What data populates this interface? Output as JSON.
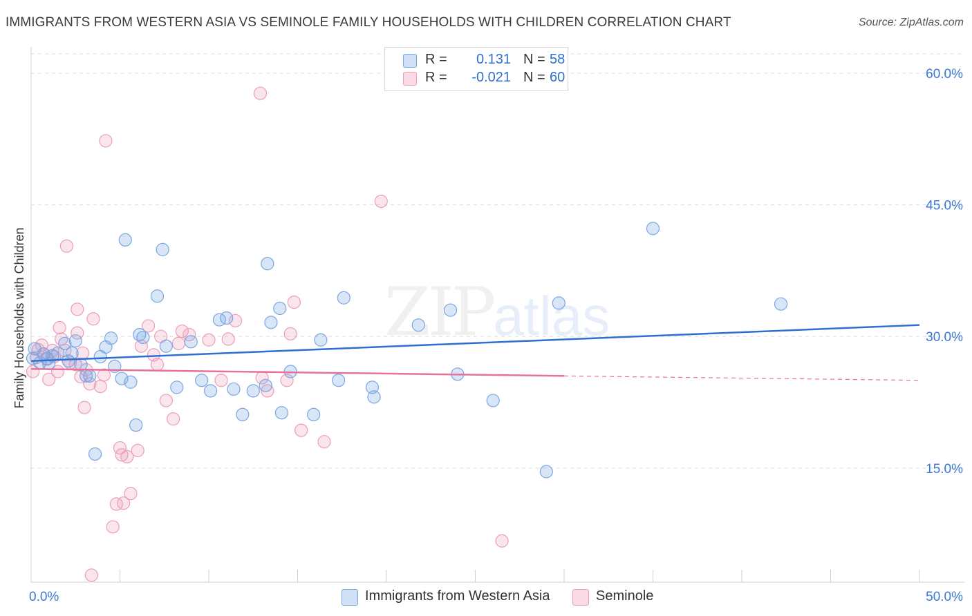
{
  "header": {
    "title": "IMMIGRANTS FROM WESTERN ASIA VS SEMINOLE FAMILY HOUSEHOLDS WITH CHILDREN CORRELATION CHART",
    "source": "Source: ZipAtlas.com"
  },
  "watermark": {
    "zip": "ZIP",
    "atlas": "atlas"
  },
  "legend": {
    "rows": [
      {
        "r_label": "R =",
        "r_value": "0.131",
        "n_label": "N =",
        "n_value": "58"
      },
      {
        "r_label": "R =",
        "r_value": "-0.021",
        "n_label": "N =",
        "n_value": "60"
      }
    ]
  },
  "bottom_legend": {
    "series1": "Immigrants from Western Asia",
    "series2": "Seminole"
  },
  "colors": {
    "series1_fill": "rgba(120,165,230,0.28)",
    "series1_stroke": "#7aa6e0",
    "series1_line": "#2f6fcf",
    "series2_fill": "rgba(240,150,180,0.25)",
    "series2_stroke": "#eb9db8",
    "series2_line": "#e8719a",
    "axis_text": "#3a78d4",
    "grid": "#dcdcdc"
  },
  "chart_data": {
    "type": "scatter",
    "title": "IMMIGRANTS FROM WESTERN ASIA VS SEMINOLE FAMILY HOUSEHOLDS WITH CHILDREN CORRELATION CHART",
    "xlabel": "",
    "ylabel": "Family Households with Children",
    "xlim": [
      0,
      50
    ],
    "ylim": [
      0,
      60
    ],
    "x_tick_labels": [
      "0.0%",
      "50.0%"
    ],
    "y_ticks": [
      15,
      30,
      45,
      60
    ],
    "y_tick_labels": [
      "15.0%",
      "30.0%",
      "45.0%",
      "60.0%"
    ],
    "grid": true,
    "legend_position": "top-center",
    "series": [
      {
        "name": "Immigrants from Western Asia",
        "trend": {
          "x": [
            0,
            50
          ],
          "y": [
            27.2,
            31.3
          ],
          "dashed_from": null
        },
        "points": [
          [
            0.1,
            27.5
          ],
          [
            0.2,
            28.6
          ],
          [
            0.5,
            27.0
          ],
          [
            0.7,
            28.0
          ],
          [
            0.9,
            27.5
          ],
          [
            1.0,
            26.9
          ],
          [
            1.2,
            27.8
          ],
          [
            1.5,
            28.1
          ],
          [
            1.9,
            29.2
          ],
          [
            2.1,
            27.2
          ],
          [
            2.3,
            28.1
          ],
          [
            2.5,
            29.5
          ],
          [
            2.8,
            26.8
          ],
          [
            3.1,
            25.5
          ],
          [
            3.6,
            16.6
          ],
          [
            3.9,
            27.7
          ],
          [
            4.2,
            28.8
          ],
          [
            4.5,
            29.8
          ],
          [
            4.7,
            26.6
          ],
          [
            5.1,
            25.2
          ],
          [
            5.3,
            41.0
          ],
          [
            5.6,
            24.8
          ],
          [
            5.9,
            19.9
          ],
          [
            6.1,
            30.2
          ],
          [
            6.3,
            29.9
          ],
          [
            7.1,
            34.6
          ],
          [
            7.4,
            39.9
          ],
          [
            7.6,
            28.9
          ],
          [
            8.2,
            24.2
          ],
          [
            9.0,
            29.4
          ],
          [
            9.6,
            25.0
          ],
          [
            10.1,
            23.8
          ],
          [
            10.6,
            31.9
          ],
          [
            11.0,
            32.1
          ],
          [
            11.4,
            24.0
          ],
          [
            11.9,
            21.1
          ],
          [
            12.5,
            23.8
          ],
          [
            13.2,
            24.4
          ],
          [
            13.3,
            38.3
          ],
          [
            13.5,
            31.6
          ],
          [
            14.0,
            33.2
          ],
          [
            14.1,
            21.3
          ],
          [
            14.6,
            26.0
          ],
          [
            15.9,
            21.1
          ],
          [
            16.3,
            29.6
          ],
          [
            17.6,
            34.4
          ],
          [
            17.3,
            25.0
          ],
          [
            19.2,
            24.2
          ],
          [
            19.3,
            23.1
          ],
          [
            21.8,
            31.3
          ],
          [
            23.6,
            33.0
          ],
          [
            24.0,
            25.7
          ],
          [
            26.0,
            22.7
          ],
          [
            29.0,
            14.6
          ],
          [
            29.7,
            33.8
          ],
          [
            35.0,
            42.3
          ],
          [
            42.2,
            33.7
          ],
          [
            3.3,
            25.5
          ]
        ]
      },
      {
        "name": "Seminole",
        "trend": {
          "x": [
            0,
            30
          ],
          "y": [
            26.3,
            25.5
          ],
          "dashed_to": [
            50,
            25.0
          ]
        },
        "points": [
          [
            0.1,
            26.0
          ],
          [
            0.3,
            27.6
          ],
          [
            0.4,
            28.5
          ],
          [
            0.6,
            29.0
          ],
          [
            0.7,
            28.0
          ],
          [
            0.9,
            27.4
          ],
          [
            1.0,
            25.1
          ],
          [
            1.2,
            28.4
          ],
          [
            1.3,
            27.7
          ],
          [
            1.5,
            26.0
          ],
          [
            1.6,
            31.0
          ],
          [
            1.7,
            29.7
          ],
          [
            1.9,
            28.4
          ],
          [
            2.0,
            40.3
          ],
          [
            2.2,
            27.0
          ],
          [
            2.5,
            26.8
          ],
          [
            2.6,
            30.4
          ],
          [
            2.6,
            33.1
          ],
          [
            2.8,
            25.4
          ],
          [
            2.9,
            28.1
          ],
          [
            3.0,
            21.9
          ],
          [
            3.1,
            26.2
          ],
          [
            3.3,
            24.6
          ],
          [
            3.5,
            32.0
          ],
          [
            3.9,
            24.3
          ],
          [
            4.1,
            25.6
          ],
          [
            4.2,
            52.3
          ],
          [
            4.6,
            8.3
          ],
          [
            4.8,
            10.9
          ],
          [
            5.0,
            17.3
          ],
          [
            5.2,
            11.0
          ],
          [
            5.4,
            16.3
          ],
          [
            5.6,
            12.1
          ],
          [
            6.0,
            17.0
          ],
          [
            6.2,
            28.9
          ],
          [
            6.6,
            31.2
          ],
          [
            6.9,
            27.9
          ],
          [
            7.1,
            26.8
          ],
          [
            7.3,
            30.0
          ],
          [
            7.6,
            22.7
          ],
          [
            8.0,
            20.6
          ],
          [
            8.3,
            29.2
          ],
          [
            8.5,
            30.6
          ],
          [
            8.9,
            30.2
          ],
          [
            10.0,
            29.6
          ],
          [
            10.7,
            25.0
          ],
          [
            11.1,
            29.7
          ],
          [
            11.5,
            31.8
          ],
          [
            12.9,
            57.7
          ],
          [
            13.0,
            25.3
          ],
          [
            13.3,
            23.8
          ],
          [
            14.4,
            25.0
          ],
          [
            14.6,
            30.3
          ],
          [
            14.8,
            33.9
          ],
          [
            15.2,
            19.3
          ],
          [
            16.5,
            18.0
          ],
          [
            19.7,
            45.4
          ],
          [
            26.5,
            6.7
          ],
          [
            3.4,
            2.8
          ],
          [
            5.1,
            16.5
          ]
        ]
      }
    ]
  }
}
